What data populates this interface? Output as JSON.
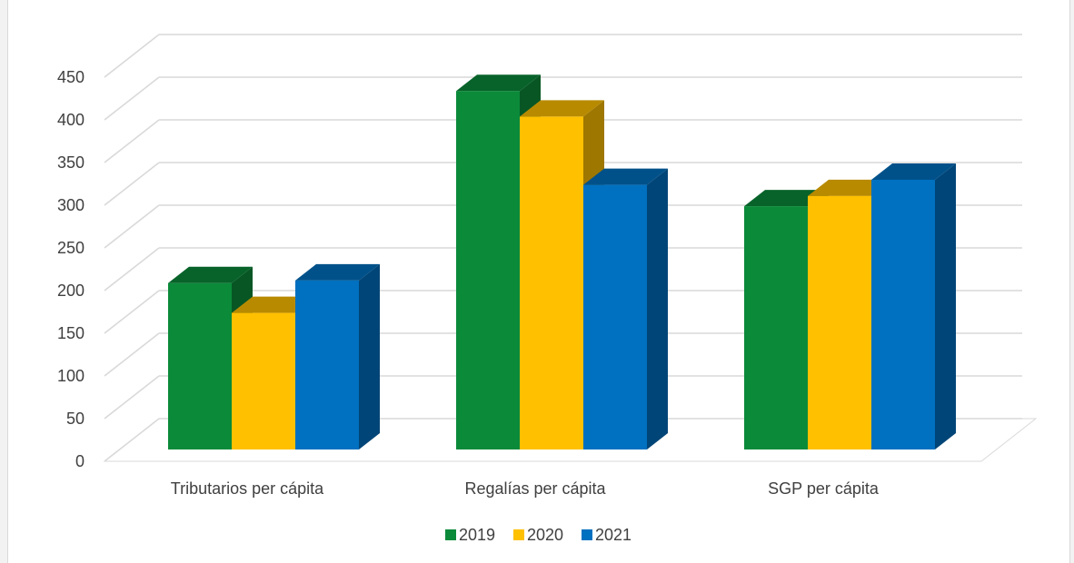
{
  "title_fragment": "",
  "chart_data": {
    "type": "bar",
    "title": "",
    "xlabel": "",
    "ylabel": "",
    "categories": [
      "Tributarios per cápita",
      "Regalías per cápita",
      "SGP per cápita"
    ],
    "series": [
      {
        "name": "2019",
        "values": [
          195,
          420,
          285
        ],
        "color": "#0b8a3a"
      },
      {
        "name": "2020",
        "values": [
          160,
          390,
          297
        ],
        "color": "#ffc000"
      },
      {
        "name": "2021",
        "values": [
          198,
          310,
          316
        ],
        "color": "#0070c0"
      }
    ],
    "ylim": [
      0,
      450
    ],
    "yticks": [
      0,
      50,
      100,
      150,
      200,
      250,
      300,
      350,
      400,
      450
    ],
    "ytick_labels": [
      "0",
      "50",
      "100",
      "150",
      "200",
      "250",
      "300",
      "350",
      "400",
      "450"
    ],
    "grid": true,
    "legend": "bottom",
    "style": "3d-clustered-column"
  }
}
